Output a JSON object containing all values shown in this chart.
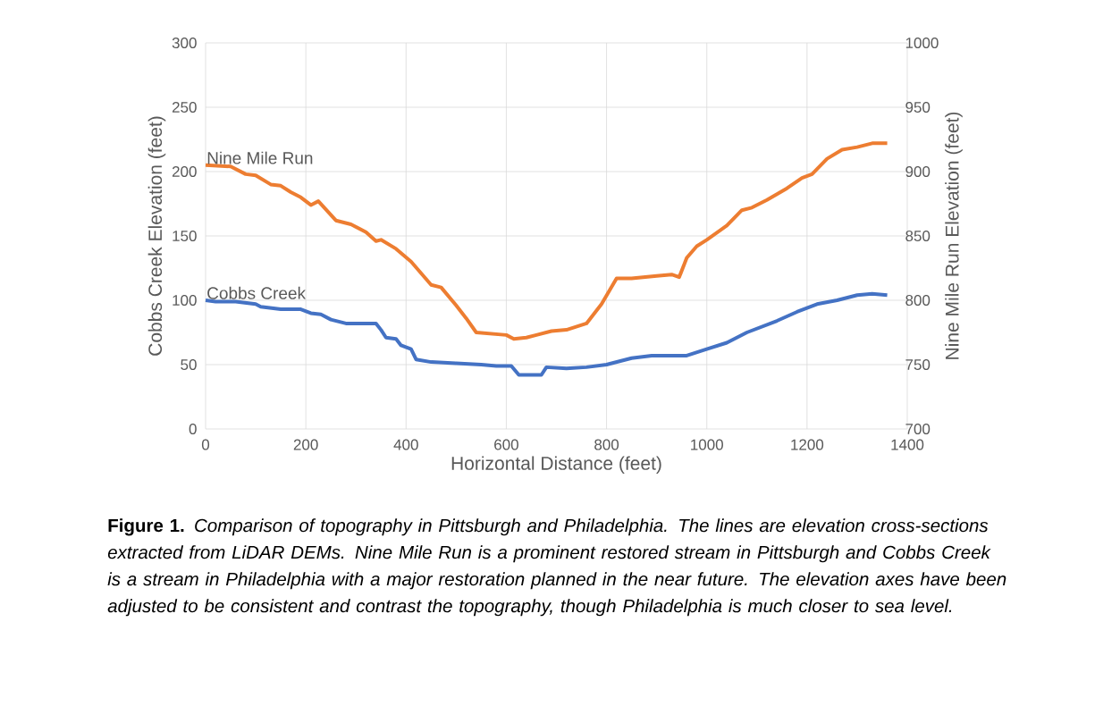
{
  "chart_data": {
    "type": "line",
    "xlabel": "Horizontal Distance (feet)",
    "ylabel": "Cobbs Creek Elevation (feet)",
    "y2label": "Nine Mile Run Elevation (feet)",
    "series": [
      {
        "name": "Nine Mile Run",
        "color": "#ed7d31",
        "axis": "y2",
        "x": [
          0,
          50,
          80,
          100,
          130,
          150,
          170,
          190,
          210,
          225,
          260,
          290,
          320,
          340,
          350,
          380,
          410,
          450,
          470,
          500,
          520,
          540,
          600,
          615,
          640,
          660,
          690,
          720,
          760,
          790,
          820,
          850,
          900,
          930,
          945,
          960,
          980,
          1000,
          1040,
          1070,
          1090,
          1120,
          1160,
          1190,
          1210,
          1240,
          1270,
          1300,
          1330,
          1360
        ],
        "values": [
          905,
          904,
          898,
          897,
          890,
          889,
          884,
          880,
          874,
          877,
          862,
          859,
          853,
          846,
          847,
          840,
          830,
          812,
          810,
          796,
          786,
          775,
          773,
          770,
          771,
          773,
          776,
          777,
          782,
          797,
          817,
          817,
          819,
          820,
          818,
          833,
          842,
          847,
          858,
          870,
          872,
          878,
          887,
          895,
          898,
          910,
          917,
          919,
          922,
          922
        ]
      },
      {
        "name": "Cobbs Creek",
        "color": "#4472c4",
        "axis": "y",
        "x": [
          0,
          20,
          60,
          100,
          110,
          150,
          190,
          210,
          230,
          250,
          280,
          340,
          350,
          360,
          380,
          390,
          410,
          420,
          450,
          500,
          550,
          580,
          610,
          625,
          670,
          680,
          720,
          760,
          800,
          850,
          890,
          940,
          960,
          1000,
          1040,
          1080,
          1140,
          1180,
          1220,
          1260,
          1300,
          1330,
          1360
        ],
        "values": [
          100,
          99,
          99,
          97,
          95,
          93,
          93,
          90,
          89,
          85,
          82,
          82,
          77,
          71,
          70,
          65,
          62,
          54,
          52,
          51,
          50,
          49,
          49,
          42,
          42,
          48,
          47,
          48,
          50,
          55,
          57,
          57,
          57,
          62,
          67,
          75,
          84,
          91,
          97,
          100,
          104,
          105,
          104
        ]
      }
    ],
    "xlim": [
      0,
      1400
    ],
    "xticks": [
      0,
      200,
      400,
      600,
      800,
      1000,
      1200,
      1400
    ],
    "ylim": [
      0,
      300
    ],
    "yticks": [
      0,
      50,
      100,
      150,
      200,
      250,
      300
    ],
    "y2lim": [
      700,
      1000
    ],
    "y2ticks": [
      700,
      750,
      800,
      850,
      900,
      950,
      1000
    ],
    "grid": true,
    "marker": "none",
    "line_style": "solid",
    "annotations": [
      "**Figure 1.** *Comparison of topography in Pittsburgh and Philadelphia. The lines are elevation cross-sections extracted from LiDAR DEMs. Nine Mile Run is a prominent restored stream in Pittsburgh and Cobbs Creek is a stream in Philadelphia with a major restoration planned in the near future. The elevation axes have been adjusted to be consistent and contrast the topography, though Philadelphia is much closer to sea level.*"
    ]
  }
}
